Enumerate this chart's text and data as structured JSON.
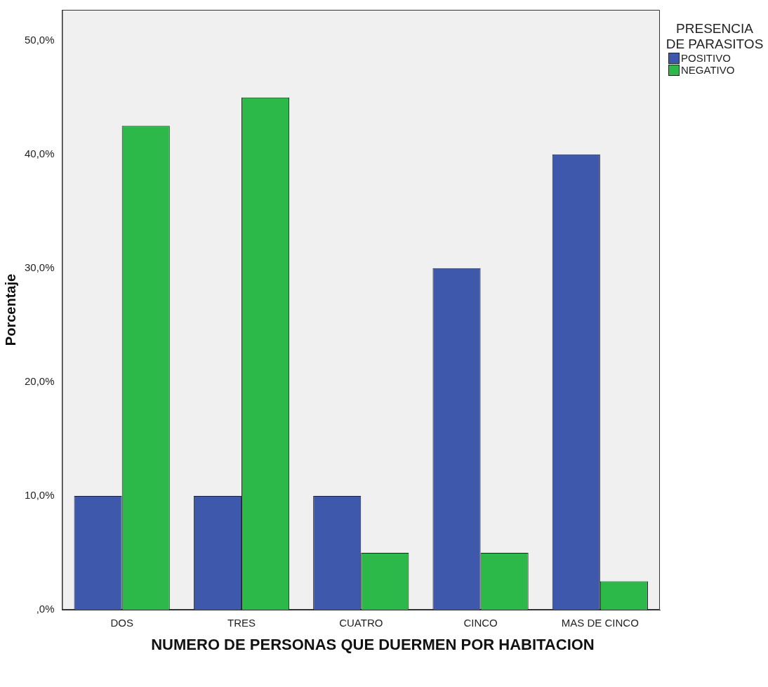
{
  "chart_data": {
    "type": "bar",
    "xlabel": "NUMERO DE PERSONAS QUE DUERMEN POR HABITACION",
    "ylabel": "Porcentaje",
    "legend_title": "PRESENCIA DE PARASITOS",
    "legend": "top right",
    "categories": [
      "DOS",
      "TRES",
      "CUATRO",
      "CINCO",
      "MAS DE CINCO"
    ],
    "series": [
      {
        "name": "POSITIVO",
        "color": "#3e58ac",
        "values": [
          10,
          10,
          10,
          30,
          40
        ]
      },
      {
        "name": "NEGATIVO",
        "color": "#2db84a",
        "values": [
          42.5,
          45,
          5,
          5,
          2.5
        ]
      }
    ],
    "ylim": [
      0,
      52.7
    ],
    "yticks": [
      {
        "value": 0,
        "label": ",0%"
      },
      {
        "value": 10,
        "label": "10,0%"
      },
      {
        "value": 20,
        "label": "20,0%"
      },
      {
        "value": 30,
        "label": "30,0%"
      },
      {
        "value": 40,
        "label": "40,0%"
      },
      {
        "value": 50,
        "label": "50,0%"
      }
    ],
    "grid": false
  }
}
